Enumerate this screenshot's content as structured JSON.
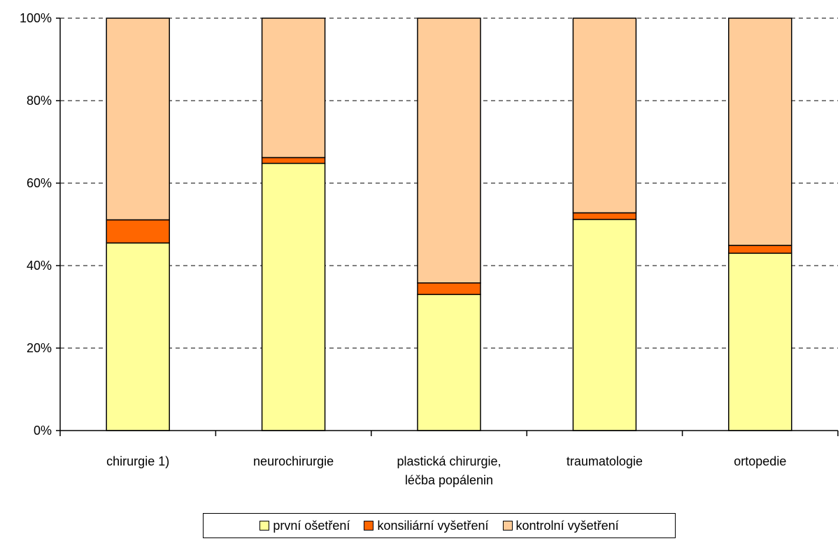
{
  "chart_data": {
    "type": "bar",
    "stacked": true,
    "normalized": true,
    "categories": [
      [
        "chirurgie 1)"
      ],
      [
        "neurochirurgie"
      ],
      [
        "plastická chirurgie,",
        "léčba popálenin"
      ],
      [
        "traumatologie"
      ],
      [
        "ortopedie"
      ]
    ],
    "series": [
      {
        "name": "první ošetření",
        "color": "#FFFF99",
        "values": [
          45.5,
          64.8,
          33.0,
          51.2,
          43.0
        ]
      },
      {
        "name": "konsiliární vyšetření",
        "color": "#FF6600",
        "values": [
          5.6,
          1.4,
          2.8,
          1.6,
          1.9
        ]
      },
      {
        "name": "kontrolní vyšetření",
        "color": "#FFCC99",
        "values": [
          48.9,
          33.8,
          64.2,
          47.2,
          55.1
        ]
      }
    ],
    "y_ticks": [
      "0%",
      "20%",
      "40%",
      "60%",
      "80%",
      "100%"
    ],
    "ylim": [
      0,
      100
    ],
    "grid": "horizontal dashed",
    "legend_position": "bottom"
  }
}
